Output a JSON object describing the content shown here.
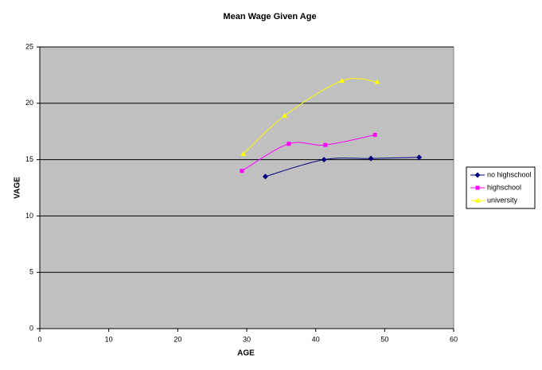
{
  "chart_data": {
    "type": "scatter",
    "smooth": true,
    "title": "Mean Wage Given Age",
    "x_label": "AGE",
    "y_label": "VAGE",
    "xlim": [
      0,
      60
    ],
    "xticks": [
      0,
      10,
      20,
      30,
      40,
      50,
      60
    ],
    "ylim": [
      0,
      25
    ],
    "yticks": [
      0,
      5,
      10,
      15,
      20,
      25
    ],
    "grid": true,
    "legend": "right",
    "background": "#c0c0c0",
    "series": [
      {
        "name": "no highschool",
        "color": "#000080",
        "marker": "diamond",
        "x": [
          32.7,
          41.2,
          48.0,
          55.0
        ],
        "values": [
          13.5,
          15.0,
          15.1,
          15.2
        ]
      },
      {
        "name": "highschool",
        "color": "#ff00ff",
        "marker": "square",
        "x": [
          29.3,
          36.1,
          41.4,
          48.6
        ],
        "values": [
          14.0,
          16.4,
          16.3,
          17.2
        ]
      },
      {
        "name": "university",
        "color": "#ffff00",
        "marker": "triangle",
        "x": [
          29.5,
          35.5,
          43.8,
          48.9
        ],
        "values": [
          15.5,
          18.9,
          22.0,
          21.9
        ]
      }
    ]
  }
}
